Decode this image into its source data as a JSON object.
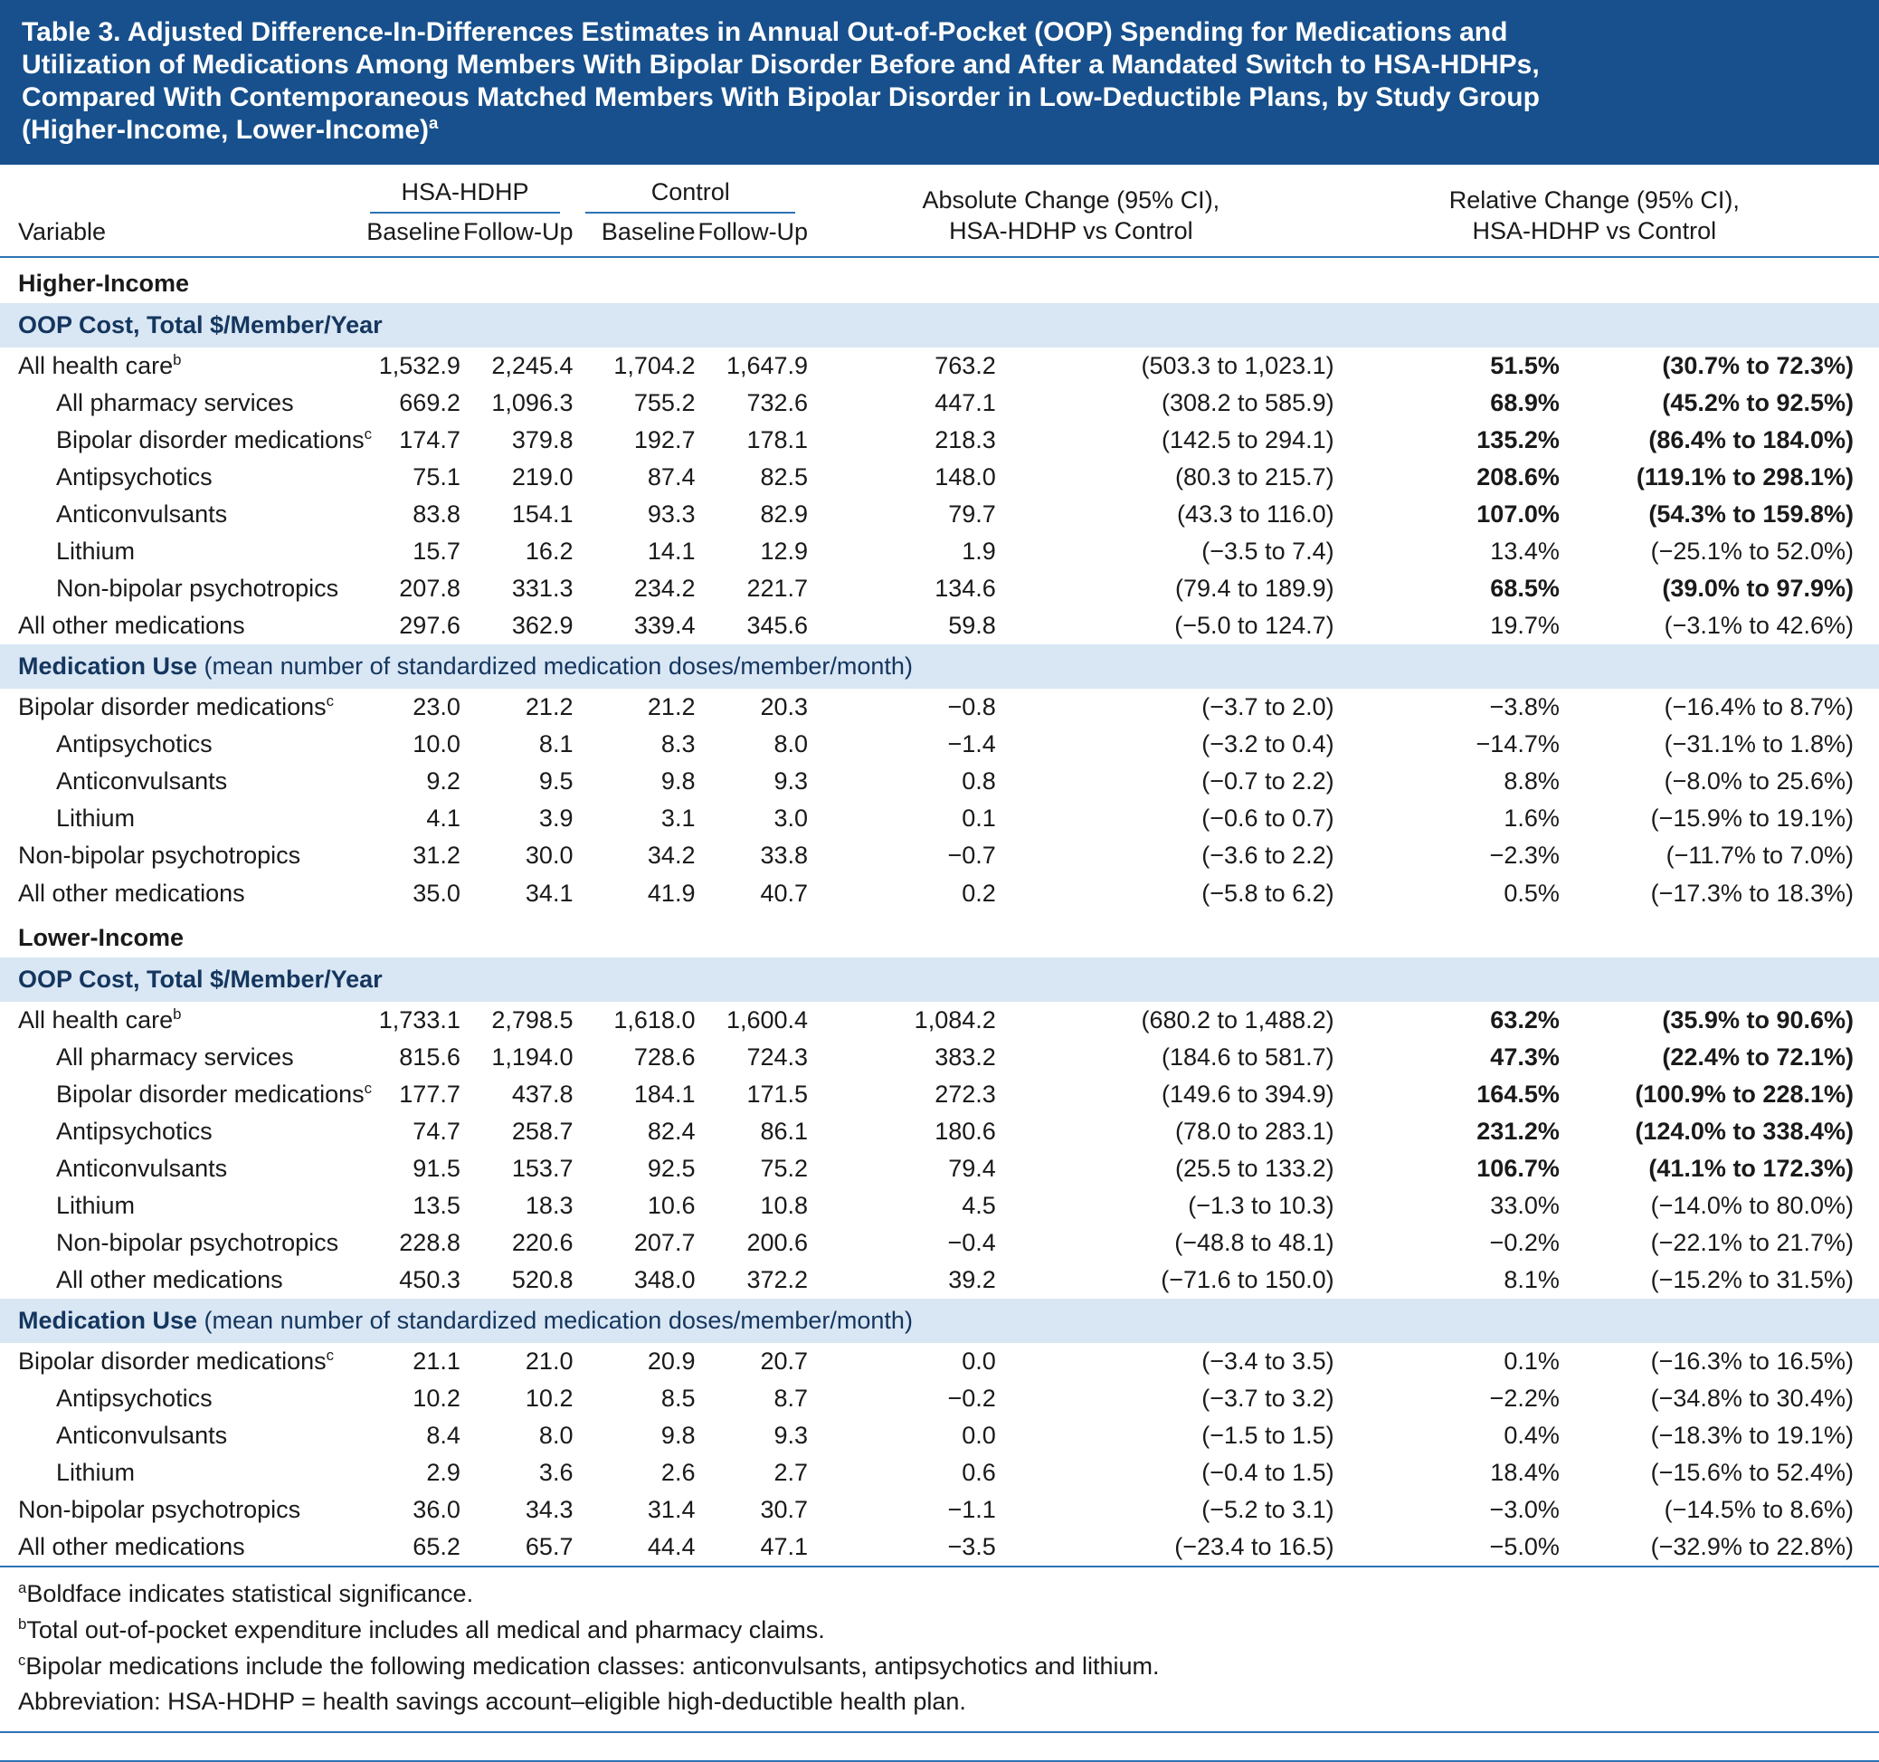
{
  "colors": {
    "header_bg": "#17508C",
    "band_bg": "#D9E6F4",
    "rule": "#2E74B5",
    "band_text": "#14365E"
  },
  "title": {
    "lines": [
      "Table 3. Adjusted Difference-In-Differences Estimates in Annual Out-of-Pocket (OOP) Spending for Medications and",
      "Utilization of Medications Among Members With Bipolar Disorder Before and After a Mandated Switch to HSA-HDHPs,",
      "Compared With Contemporaneous Matched Members With Bipolar Disorder in Low-Deductible Plans, by Study Group",
      "(Higher-Income, Lower-Income)"
    ],
    "sup": "a"
  },
  "columns": {
    "variable": "Variable",
    "hsa_hdhp": "HSA-HDHP",
    "control": "Control",
    "sub": [
      "Baseline",
      "Follow-Up",
      "Baseline",
      "Follow-Up"
    ],
    "absolute_line1": "Absolute Change (95% CI),",
    "absolute_line2": "HSA-HDHP vs Control",
    "relative_line1": "Relative Change (95% CI),",
    "relative_line2": "HSA-HDHP vs Control"
  },
  "table": {
    "sections": [
      {
        "type": "group",
        "label": "Higher-Income"
      },
      {
        "type": "band",
        "label_bold": "OOP Cost, Total $/Member/Year",
        "label_rest": ""
      },
      {
        "type": "row",
        "label": "All health care",
        "sup": "b",
        "indent": 0,
        "bold": true,
        "values": [
          "1,532.9",
          "2,245.4",
          "1,704.2",
          "1,647.9",
          "763.2",
          "(503.3 to 1,023.1)",
          "51.5%",
          "(30.7% to 72.3%)"
        ]
      },
      {
        "type": "row",
        "label": "All pharmacy services",
        "indent": 1,
        "bold": true,
        "values": [
          "669.2",
          "1,096.3",
          "755.2",
          "732.6",
          "447.1",
          "(308.2 to 585.9)",
          "68.9%",
          "(45.2% to 92.5%)"
        ]
      },
      {
        "type": "row",
        "label": "Bipolar disorder medications",
        "sup": "c",
        "indent": 1,
        "bold": true,
        "values": [
          "174.7",
          "379.8",
          "192.7",
          "178.1",
          "218.3",
          "(142.5 to 294.1)",
          "135.2%",
          "(86.4% to 184.0%)"
        ]
      },
      {
        "type": "row",
        "label": "Antipsychotics",
        "indent": 1,
        "bold": true,
        "values": [
          "75.1",
          "219.0",
          "87.4",
          "82.5",
          "148.0",
          "(80.3 to 215.7)",
          "208.6%",
          "(119.1% to 298.1%)"
        ]
      },
      {
        "type": "row",
        "label": "Anticonvulsants",
        "indent": 1,
        "bold": true,
        "values": [
          "83.8",
          "154.1",
          "93.3",
          "82.9",
          "79.7",
          "(43.3 to 116.0)",
          "107.0%",
          "(54.3% to 159.8%)"
        ]
      },
      {
        "type": "row",
        "label": "Lithium",
        "indent": 1,
        "bold": false,
        "values": [
          "15.7",
          "16.2",
          "14.1",
          "12.9",
          "1.9",
          "(−3.5 to 7.4)",
          "13.4%",
          "(−25.1% to 52.0%)"
        ]
      },
      {
        "type": "row",
        "label": "Non-bipolar psychotropics",
        "indent": 1,
        "bold": true,
        "values": [
          "207.8",
          "331.3",
          "234.2",
          "221.7",
          "134.6",
          "(79.4 to 189.9)",
          "68.5%",
          "(39.0% to 97.9%)"
        ]
      },
      {
        "type": "row",
        "label": "All other medications",
        "indent": 0,
        "bold": false,
        "values": [
          "297.6",
          "362.9",
          "339.4",
          "345.6",
          "59.8",
          "(−5.0 to 124.7)",
          "19.7%",
          "(−3.1% to 42.6%)"
        ]
      },
      {
        "type": "band",
        "label_bold": "Medication Use ",
        "label_rest": "(mean number of standardized medication doses/member/month)"
      },
      {
        "type": "row",
        "label": "Bipolar disorder medications",
        "sup": "c",
        "indent": 0,
        "bold": false,
        "values": [
          "23.0",
          "21.2",
          "21.2",
          "20.3",
          "−0.8",
          "(−3.7 to 2.0)",
          "−3.8%",
          "(−16.4% to 8.7%)"
        ]
      },
      {
        "type": "row",
        "label": "Antipsychotics",
        "indent": 1,
        "bold": false,
        "values": [
          "10.0",
          "8.1",
          "8.3",
          "8.0",
          "−1.4",
          "(−3.2 to 0.4)",
          "−14.7%",
          "(−31.1% to 1.8%)"
        ]
      },
      {
        "type": "row",
        "label": "Anticonvulsants",
        "indent": 1,
        "bold": false,
        "values": [
          "9.2",
          "9.5",
          "9.8",
          "9.3",
          "0.8",
          "(−0.7 to 2.2)",
          "8.8%",
          "(−8.0% to 25.6%)"
        ]
      },
      {
        "type": "row",
        "label": "Lithium",
        "indent": 1,
        "bold": false,
        "values": [
          "4.1",
          "3.9",
          "3.1",
          "3.0",
          "0.1",
          "(−0.6 to 0.7)",
          "1.6%",
          "(−15.9% to 19.1%)"
        ]
      },
      {
        "type": "row",
        "label": "Non-bipolar psychotropics",
        "indent": 0,
        "bold": false,
        "values": [
          "31.2",
          "30.0",
          "34.2",
          "33.8",
          "−0.7",
          "(−3.6 to 2.2)",
          "−2.3%",
          "(−11.7% to 7.0%)"
        ]
      },
      {
        "type": "row",
        "label": "All other medications",
        "indent": 0,
        "bold": false,
        "values": [
          "35.0",
          "34.1",
          "41.9",
          "40.7",
          "0.2",
          "(−5.8 to 6.2)",
          "0.5%",
          "(−17.3% to 18.3%)"
        ]
      },
      {
        "type": "group",
        "label": "Lower-Income"
      },
      {
        "type": "band",
        "label_bold": "OOP Cost, Total $/Member/Year",
        "label_rest": ""
      },
      {
        "type": "row",
        "label": "All health care",
        "sup": "b",
        "indent": 0,
        "bold": true,
        "values": [
          "1,733.1",
          "2,798.5",
          "1,618.0",
          "1,600.4",
          "1,084.2",
          "(680.2 to 1,488.2)",
          "63.2%",
          "(35.9% to 90.6%)"
        ]
      },
      {
        "type": "row",
        "label": "All pharmacy services",
        "indent": 1,
        "bold": true,
        "values": [
          "815.6",
          "1,194.0",
          "728.6",
          "724.3",
          "383.2",
          "(184.6 to 581.7)",
          "47.3%",
          "(22.4% to 72.1%)"
        ]
      },
      {
        "type": "row",
        "label": "Bipolar disorder medications",
        "sup": "c",
        "indent": 1,
        "bold": true,
        "values": [
          "177.7",
          "437.8",
          "184.1",
          "171.5",
          "272.3",
          "(149.6 to 394.9)",
          "164.5%",
          "(100.9% to 228.1%)"
        ]
      },
      {
        "type": "row",
        "label": "Antipsychotics",
        "indent": 1,
        "bold": true,
        "values": [
          "74.7",
          "258.7",
          "82.4",
          "86.1",
          "180.6",
          "(78.0 to 283.1)",
          "231.2%",
          "(124.0% to 338.4%)"
        ]
      },
      {
        "type": "row",
        "label": "Anticonvulsants",
        "indent": 1,
        "bold": true,
        "values": [
          "91.5",
          "153.7",
          "92.5",
          "75.2",
          "79.4",
          "(25.5 to 133.2)",
          "106.7%",
          "(41.1% to 172.3%)"
        ]
      },
      {
        "type": "row",
        "label": "Lithium",
        "indent": 1,
        "bold": false,
        "values": [
          "13.5",
          "18.3",
          "10.6",
          "10.8",
          "4.5",
          "(−1.3 to 10.3)",
          "33.0%",
          "(−14.0% to 80.0%)"
        ]
      },
      {
        "type": "row",
        "label": "Non-bipolar psychotropics",
        "indent": 1,
        "bold": false,
        "values": [
          "228.8",
          "220.6",
          "207.7",
          "200.6",
          "−0.4",
          "(−48.8 to 48.1)",
          "−0.2%",
          "(−22.1% to 21.7%)"
        ]
      },
      {
        "type": "row",
        "label": "All other medications",
        "indent": 1,
        "bold": false,
        "values": [
          "450.3",
          "520.8",
          "348.0",
          "372.2",
          "39.2",
          "(−71.6 to 150.0)",
          "8.1%",
          "(−15.2% to 31.5%)"
        ]
      },
      {
        "type": "band",
        "label_bold": "Medication Use ",
        "label_rest": "(mean number of standardized medication doses/member/month)"
      },
      {
        "type": "row",
        "label": "Bipolar disorder medications",
        "sup": "c",
        "indent": 0,
        "bold": false,
        "values": [
          "21.1",
          "21.0",
          "20.9",
          "20.7",
          "0.0",
          "(−3.4 to 3.5)",
          "0.1%",
          "(−16.3% to 16.5%)"
        ]
      },
      {
        "type": "row",
        "label": "Antipsychotics",
        "indent": 1,
        "bold": false,
        "values": [
          "10.2",
          "10.2",
          "8.5",
          "8.7",
          "−0.2",
          "(−3.7 to 3.2)",
          "−2.2%",
          "(−34.8% to 30.4%)"
        ]
      },
      {
        "type": "row",
        "label": "Anticonvulsants",
        "indent": 1,
        "bold": false,
        "values": [
          "8.4",
          "8.0",
          "9.8",
          "9.3",
          "0.0",
          "(−1.5 to 1.5)",
          "0.4%",
          "(−18.3% to 19.1%)"
        ]
      },
      {
        "type": "row",
        "label": "Lithium",
        "indent": 1,
        "bold": false,
        "values": [
          "2.9",
          "3.6",
          "2.6",
          "2.7",
          "0.6",
          "(−0.4 to 1.5)",
          "18.4%",
          "(−15.6% to 52.4%)"
        ]
      },
      {
        "type": "row",
        "label": "Non-bipolar psychotropics",
        "indent": 0,
        "bold": false,
        "values": [
          "36.0",
          "34.3",
          "31.4",
          "30.7",
          "−1.1",
          "(−5.2 to 3.1)",
          "−3.0%",
          "(−14.5% to 8.6%)"
        ]
      },
      {
        "type": "row",
        "label": "All other medications",
        "indent": 0,
        "bold": false,
        "values": [
          "65.2",
          "65.7",
          "44.4",
          "47.1",
          "−3.5",
          "(−23.4 to 16.5)",
          "−5.0%",
          "(−32.9% to 22.8%)"
        ]
      }
    ]
  },
  "footnotes": [
    {
      "sup": "a",
      "text": "Boldface indicates statistical significance."
    },
    {
      "sup": "b",
      "text": "Total out-of-pocket expenditure includes all medical and pharmacy claims."
    },
    {
      "sup": "c",
      "text": "Bipolar medications include the following medication classes: anticonvulsants, antipsychotics and lithium."
    },
    {
      "sup": "",
      "text": "Abbreviation: HSA-HDHP = health savings account–eligible high-deductible health plan."
    }
  ]
}
